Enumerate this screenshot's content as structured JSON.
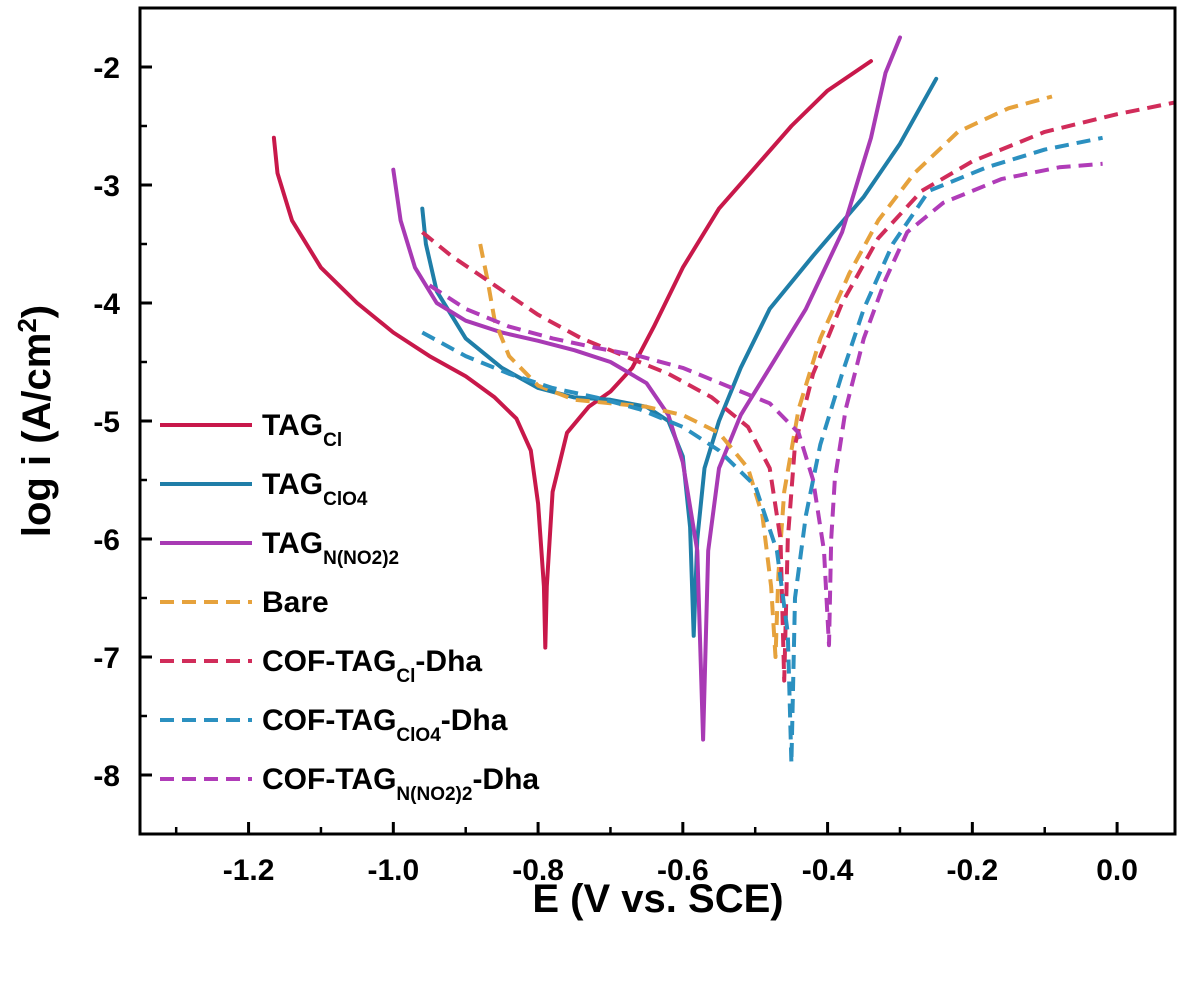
{
  "chart_data": {
    "type": "line",
    "title": "",
    "xlabel": "E (V vs. SCE)",
    "ylabel_main": "log i (A/cm",
    "ylabel_sup": "2",
    "ylabel_end": ")",
    "xlim": [
      -1.35,
      0.08
    ],
    "ylim": [
      -8.5,
      -1.5
    ],
    "xticks": [
      -1.2,
      -1.0,
      -0.8,
      -0.6,
      -0.4,
      -0.2,
      0.0
    ],
    "xtick_labels": [
      "-1.2",
      "-1.0",
      "-0.8",
      "-0.6",
      "-0.4",
      "-0.2",
      "0.0"
    ],
    "yticks": [
      -2,
      -3,
      -4,
      -5,
      -6,
      -7,
      -8
    ],
    "ytick_labels": [
      "-2",
      "-3",
      "-4",
      "-5",
      "-6",
      "-7",
      "-8"
    ],
    "legend_position": "left",
    "series": [
      {
        "key": "tag-cl",
        "label_main": "TAG",
        "label_sub": "Cl",
        "label_end": "",
        "color": "#c8184a",
        "dash": false,
        "points": [
          [
            -1.165,
            -2.6
          ],
          [
            -1.16,
            -2.9
          ],
          [
            -1.14,
            -3.3
          ],
          [
            -1.1,
            -3.7
          ],
          [
            -1.05,
            -4.0
          ],
          [
            -1.0,
            -4.25
          ],
          [
            -0.95,
            -4.45
          ],
          [
            -0.9,
            -4.62
          ],
          [
            -0.86,
            -4.8
          ],
          [
            -0.83,
            -4.98
          ],
          [
            -0.81,
            -5.25
          ],
          [
            -0.8,
            -5.7
          ],
          [
            -0.792,
            -6.4
          ],
          [
            -0.79,
            -6.92
          ],
          [
            -0.788,
            -6.4
          ],
          [
            -0.78,
            -5.6
          ],
          [
            -0.76,
            -5.1
          ],
          [
            -0.73,
            -4.88
          ],
          [
            -0.7,
            -4.75
          ],
          [
            -0.67,
            -4.55
          ],
          [
            -0.64,
            -4.2
          ],
          [
            -0.6,
            -3.7
          ],
          [
            -0.55,
            -3.2
          ],
          [
            -0.5,
            -2.85
          ],
          [
            -0.45,
            -2.5
          ],
          [
            -0.4,
            -2.2
          ],
          [
            -0.34,
            -1.95
          ]
        ]
      },
      {
        "key": "tag-clo4",
        "label_main": "TAG",
        "label_sub": "ClO4",
        "label_end": "",
        "color": "#1f7ea8",
        "dash": false,
        "points": [
          [
            -0.96,
            -3.2
          ],
          [
            -0.955,
            -3.5
          ],
          [
            -0.94,
            -3.9
          ],
          [
            -0.9,
            -4.3
          ],
          [
            -0.85,
            -4.55
          ],
          [
            -0.8,
            -4.72
          ],
          [
            -0.75,
            -4.8
          ],
          [
            -0.7,
            -4.82
          ],
          [
            -0.65,
            -4.88
          ],
          [
            -0.62,
            -5.0
          ],
          [
            -0.6,
            -5.3
          ],
          [
            -0.59,
            -5.9
          ],
          [
            -0.585,
            -6.82
          ],
          [
            -0.58,
            -6.0
          ],
          [
            -0.57,
            -5.4
          ],
          [
            -0.55,
            -5.0
          ],
          [
            -0.52,
            -4.55
          ],
          [
            -0.48,
            -4.05
          ],
          [
            -0.42,
            -3.6
          ],
          [
            -0.35,
            -3.1
          ],
          [
            -0.3,
            -2.65
          ],
          [
            -0.25,
            -2.1
          ]
        ]
      },
      {
        "key": "tag-nno22",
        "label_main": "TAG",
        "label_sub": "N(NO2)2",
        "label_end": "",
        "color": "#a83ab4",
        "dash": false,
        "points": [
          [
            -1.0,
            -2.87
          ],
          [
            -0.99,
            -3.3
          ],
          [
            -0.97,
            -3.7
          ],
          [
            -0.94,
            -4.0
          ],
          [
            -0.9,
            -4.15
          ],
          [
            -0.85,
            -4.25
          ],
          [
            -0.8,
            -4.32
          ],
          [
            -0.75,
            -4.4
          ],
          [
            -0.7,
            -4.5
          ],
          [
            -0.65,
            -4.68
          ],
          [
            -0.62,
            -4.95
          ],
          [
            -0.6,
            -5.35
          ],
          [
            -0.58,
            -6.1
          ],
          [
            -0.572,
            -7.7
          ],
          [
            -0.565,
            -6.1
          ],
          [
            -0.55,
            -5.4
          ],
          [
            -0.52,
            -4.95
          ],
          [
            -0.48,
            -4.55
          ],
          [
            -0.43,
            -4.05
          ],
          [
            -0.38,
            -3.4
          ],
          [
            -0.34,
            -2.6
          ],
          [
            -0.32,
            -2.05
          ],
          [
            -0.3,
            -1.75
          ]
        ]
      },
      {
        "key": "bare",
        "label_main": "Bare",
        "label_sub": "",
        "label_end": "",
        "color": "#e6a23c",
        "dash": true,
        "points": [
          [
            -0.88,
            -3.5
          ],
          [
            -0.87,
            -3.8
          ],
          [
            -0.86,
            -4.15
          ],
          [
            -0.84,
            -4.45
          ],
          [
            -0.8,
            -4.7
          ],
          [
            -0.75,
            -4.82
          ],
          [
            -0.7,
            -4.85
          ],
          [
            -0.65,
            -4.88
          ],
          [
            -0.6,
            -4.95
          ],
          [
            -0.55,
            -5.1
          ],
          [
            -0.51,
            -5.4
          ],
          [
            -0.49,
            -5.8
          ],
          [
            -0.478,
            -6.4
          ],
          [
            -0.472,
            -7.0
          ],
          [
            -0.468,
            -6.3
          ],
          [
            -0.46,
            -5.6
          ],
          [
            -0.44,
            -4.9
          ],
          [
            -0.41,
            -4.3
          ],
          [
            -0.37,
            -3.75
          ],
          [
            -0.33,
            -3.3
          ],
          [
            -0.28,
            -2.9
          ],
          [
            -0.22,
            -2.55
          ],
          [
            -0.15,
            -2.35
          ],
          [
            -0.09,
            -2.25
          ]
        ]
      },
      {
        "key": "cof-tag-cl-dha",
        "label_main": "COF-TAG",
        "label_sub": "Cl",
        "label_end": "-Dha",
        "color": "#d12c5a",
        "dash": true,
        "points": [
          [
            -0.96,
            -3.4
          ],
          [
            -0.92,
            -3.6
          ],
          [
            -0.86,
            -3.85
          ],
          [
            -0.8,
            -4.1
          ],
          [
            -0.74,
            -4.3
          ],
          [
            -0.68,
            -4.45
          ],
          [
            -0.62,
            -4.6
          ],
          [
            -0.56,
            -4.8
          ],
          [
            -0.51,
            -5.05
          ],
          [
            -0.48,
            -5.4
          ],
          [
            -0.465,
            -6.0
          ],
          [
            -0.46,
            -7.2
          ],
          [
            -0.455,
            -6.0
          ],
          [
            -0.445,
            -5.2
          ],
          [
            -0.42,
            -4.6
          ],
          [
            -0.38,
            -4.0
          ],
          [
            -0.33,
            -3.45
          ],
          [
            -0.27,
            -3.05
          ],
          [
            -0.2,
            -2.8
          ],
          [
            -0.1,
            -2.55
          ],
          [
            0.0,
            -2.4
          ],
          [
            0.08,
            -2.3
          ]
        ]
      },
      {
        "key": "cof-tag-clo4-dha",
        "label_main": "COF-TAG",
        "label_sub": "ClO4",
        "label_end": "-Dha",
        "color": "#2b90c0",
        "dash": true,
        "points": [
          [
            -0.96,
            -4.25
          ],
          [
            -0.9,
            -4.45
          ],
          [
            -0.84,
            -4.6
          ],
          [
            -0.78,
            -4.72
          ],
          [
            -0.72,
            -4.8
          ],
          [
            -0.66,
            -4.9
          ],
          [
            -0.6,
            -5.05
          ],
          [
            -0.55,
            -5.25
          ],
          [
            -0.5,
            -5.55
          ],
          [
            -0.47,
            -6.1
          ],
          [
            -0.455,
            -6.8
          ],
          [
            -0.45,
            -7.9
          ],
          [
            -0.445,
            -6.5
          ],
          [
            -0.43,
            -5.8
          ],
          [
            -0.41,
            -5.2
          ],
          [
            -0.38,
            -4.6
          ],
          [
            -0.35,
            -4.05
          ],
          [
            -0.31,
            -3.5
          ],
          [
            -0.26,
            -3.05
          ],
          [
            -0.18,
            -2.85
          ],
          [
            -0.1,
            -2.7
          ],
          [
            -0.02,
            -2.6
          ]
        ]
      },
      {
        "key": "cof-tag-nno22-dha",
        "label_main": "COF-TAG",
        "label_sub": "N(NO2)2",
        "label_end": "-Dha",
        "color": "#b03cb8",
        "dash": true,
        "points": [
          [
            -0.95,
            -3.85
          ],
          [
            -0.9,
            -4.05
          ],
          [
            -0.84,
            -4.2
          ],
          [
            -0.78,
            -4.3
          ],
          [
            -0.72,
            -4.38
          ],
          [
            -0.66,
            -4.45
          ],
          [
            -0.6,
            -4.55
          ],
          [
            -0.54,
            -4.7
          ],
          [
            -0.48,
            -4.85
          ],
          [
            -0.44,
            -5.1
          ],
          [
            -0.42,
            -5.5
          ],
          [
            -0.405,
            -6.1
          ],
          [
            -0.398,
            -6.9
          ],
          [
            -0.395,
            -6.0
          ],
          [
            -0.39,
            -5.5
          ],
          [
            -0.375,
            -4.9
          ],
          [
            -0.35,
            -4.3
          ],
          [
            -0.32,
            -3.8
          ],
          [
            -0.29,
            -3.4
          ],
          [
            -0.24,
            -3.15
          ],
          [
            -0.16,
            -2.95
          ],
          [
            -0.08,
            -2.85
          ],
          [
            -0.02,
            -2.82
          ]
        ]
      }
    ]
  }
}
